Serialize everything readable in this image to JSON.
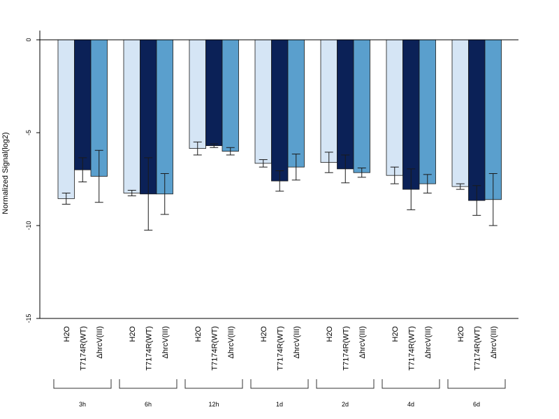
{
  "chart_data": {
    "type": "bar",
    "title": "",
    "xlabel": "",
    "ylabel": "Normalized Signal(log2)",
    "ylim": [
      -15,
      0.5
    ],
    "yticks": [
      0,
      -5,
      -10,
      -15
    ],
    "ytick_labels": [
      "0",
      "-5",
      "-10",
      "-15"
    ],
    "grid": false,
    "groups": [
      "3h",
      "6h",
      "12h",
      "1d",
      "2d",
      "4d",
      "6d"
    ],
    "series": [
      {
        "name": "H2O",
        "color": "#d5e5f5",
        "values": [
          -8.55,
          -8.25,
          -5.85,
          -6.65,
          -6.6,
          -7.3,
          -7.9
        ],
        "errors": [
          0.3,
          0.15,
          0.35,
          0.2,
          0.55,
          0.45,
          0.15
        ]
      },
      {
        "name": "T7174R(WT)",
        "color": "#0b2157",
        "values": [
          -7.0,
          -8.3,
          -5.7,
          -7.6,
          -6.95,
          -8.05,
          -8.65
        ],
        "errors": [
          0.65,
          1.95,
          0.1,
          0.55,
          0.75,
          1.1,
          0.8
        ]
      },
      {
        "name": "ΔhrcV(III)",
        "color": "#5a9fcd",
        "values": [
          -7.35,
          -8.3,
          -6.0,
          -6.85,
          -7.15,
          -7.75,
          -8.6
        ],
        "errors": [
          1.4,
          1.1,
          0.2,
          0.7,
          0.25,
          0.5,
          1.4
        ]
      }
    ]
  }
}
